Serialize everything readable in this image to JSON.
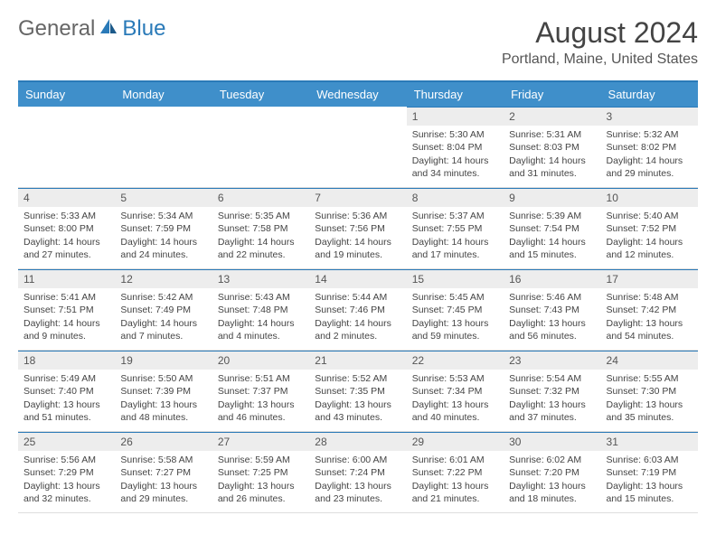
{
  "brand": {
    "part1": "General",
    "part2": "Blue"
  },
  "title": "August 2024",
  "location": "Portland, Maine, United States",
  "colors": {
    "header_bg": "#3f8fca",
    "accent": "#2a7ab8",
    "daynum_bg": "#ededed",
    "text": "#444444",
    "background": "#ffffff"
  },
  "day_headers": [
    "Sunday",
    "Monday",
    "Tuesday",
    "Wednesday",
    "Thursday",
    "Friday",
    "Saturday"
  ],
  "weeks": [
    [
      {
        "day": "",
        "sunrise": "",
        "sunset": "",
        "daylight": ""
      },
      {
        "day": "",
        "sunrise": "",
        "sunset": "",
        "daylight": ""
      },
      {
        "day": "",
        "sunrise": "",
        "sunset": "",
        "daylight": ""
      },
      {
        "day": "",
        "sunrise": "",
        "sunset": "",
        "daylight": ""
      },
      {
        "day": "1",
        "sunrise": "Sunrise: 5:30 AM",
        "sunset": "Sunset: 8:04 PM",
        "daylight": "Daylight: 14 hours and 34 minutes."
      },
      {
        "day": "2",
        "sunrise": "Sunrise: 5:31 AM",
        "sunset": "Sunset: 8:03 PM",
        "daylight": "Daylight: 14 hours and 31 minutes."
      },
      {
        "day": "3",
        "sunrise": "Sunrise: 5:32 AM",
        "sunset": "Sunset: 8:02 PM",
        "daylight": "Daylight: 14 hours and 29 minutes."
      }
    ],
    [
      {
        "day": "4",
        "sunrise": "Sunrise: 5:33 AM",
        "sunset": "Sunset: 8:00 PM",
        "daylight": "Daylight: 14 hours and 27 minutes."
      },
      {
        "day": "5",
        "sunrise": "Sunrise: 5:34 AM",
        "sunset": "Sunset: 7:59 PM",
        "daylight": "Daylight: 14 hours and 24 minutes."
      },
      {
        "day": "6",
        "sunrise": "Sunrise: 5:35 AM",
        "sunset": "Sunset: 7:58 PM",
        "daylight": "Daylight: 14 hours and 22 minutes."
      },
      {
        "day": "7",
        "sunrise": "Sunrise: 5:36 AM",
        "sunset": "Sunset: 7:56 PM",
        "daylight": "Daylight: 14 hours and 19 minutes."
      },
      {
        "day": "8",
        "sunrise": "Sunrise: 5:37 AM",
        "sunset": "Sunset: 7:55 PM",
        "daylight": "Daylight: 14 hours and 17 minutes."
      },
      {
        "day": "9",
        "sunrise": "Sunrise: 5:39 AM",
        "sunset": "Sunset: 7:54 PM",
        "daylight": "Daylight: 14 hours and 15 minutes."
      },
      {
        "day": "10",
        "sunrise": "Sunrise: 5:40 AM",
        "sunset": "Sunset: 7:52 PM",
        "daylight": "Daylight: 14 hours and 12 minutes."
      }
    ],
    [
      {
        "day": "11",
        "sunrise": "Sunrise: 5:41 AM",
        "sunset": "Sunset: 7:51 PM",
        "daylight": "Daylight: 14 hours and 9 minutes."
      },
      {
        "day": "12",
        "sunrise": "Sunrise: 5:42 AM",
        "sunset": "Sunset: 7:49 PM",
        "daylight": "Daylight: 14 hours and 7 minutes."
      },
      {
        "day": "13",
        "sunrise": "Sunrise: 5:43 AM",
        "sunset": "Sunset: 7:48 PM",
        "daylight": "Daylight: 14 hours and 4 minutes."
      },
      {
        "day": "14",
        "sunrise": "Sunrise: 5:44 AM",
        "sunset": "Sunset: 7:46 PM",
        "daylight": "Daylight: 14 hours and 2 minutes."
      },
      {
        "day": "15",
        "sunrise": "Sunrise: 5:45 AM",
        "sunset": "Sunset: 7:45 PM",
        "daylight": "Daylight: 13 hours and 59 minutes."
      },
      {
        "day": "16",
        "sunrise": "Sunrise: 5:46 AM",
        "sunset": "Sunset: 7:43 PM",
        "daylight": "Daylight: 13 hours and 56 minutes."
      },
      {
        "day": "17",
        "sunrise": "Sunrise: 5:48 AM",
        "sunset": "Sunset: 7:42 PM",
        "daylight": "Daylight: 13 hours and 54 minutes."
      }
    ],
    [
      {
        "day": "18",
        "sunrise": "Sunrise: 5:49 AM",
        "sunset": "Sunset: 7:40 PM",
        "daylight": "Daylight: 13 hours and 51 minutes."
      },
      {
        "day": "19",
        "sunrise": "Sunrise: 5:50 AM",
        "sunset": "Sunset: 7:39 PM",
        "daylight": "Daylight: 13 hours and 48 minutes."
      },
      {
        "day": "20",
        "sunrise": "Sunrise: 5:51 AM",
        "sunset": "Sunset: 7:37 PM",
        "daylight": "Daylight: 13 hours and 46 minutes."
      },
      {
        "day": "21",
        "sunrise": "Sunrise: 5:52 AM",
        "sunset": "Sunset: 7:35 PM",
        "daylight": "Daylight: 13 hours and 43 minutes."
      },
      {
        "day": "22",
        "sunrise": "Sunrise: 5:53 AM",
        "sunset": "Sunset: 7:34 PM",
        "daylight": "Daylight: 13 hours and 40 minutes."
      },
      {
        "day": "23",
        "sunrise": "Sunrise: 5:54 AM",
        "sunset": "Sunset: 7:32 PM",
        "daylight": "Daylight: 13 hours and 37 minutes."
      },
      {
        "day": "24",
        "sunrise": "Sunrise: 5:55 AM",
        "sunset": "Sunset: 7:30 PM",
        "daylight": "Daylight: 13 hours and 35 minutes."
      }
    ],
    [
      {
        "day": "25",
        "sunrise": "Sunrise: 5:56 AM",
        "sunset": "Sunset: 7:29 PM",
        "daylight": "Daylight: 13 hours and 32 minutes."
      },
      {
        "day": "26",
        "sunrise": "Sunrise: 5:58 AM",
        "sunset": "Sunset: 7:27 PM",
        "daylight": "Daylight: 13 hours and 29 minutes."
      },
      {
        "day": "27",
        "sunrise": "Sunrise: 5:59 AM",
        "sunset": "Sunset: 7:25 PM",
        "daylight": "Daylight: 13 hours and 26 minutes."
      },
      {
        "day": "28",
        "sunrise": "Sunrise: 6:00 AM",
        "sunset": "Sunset: 7:24 PM",
        "daylight": "Daylight: 13 hours and 23 minutes."
      },
      {
        "day": "29",
        "sunrise": "Sunrise: 6:01 AM",
        "sunset": "Sunset: 7:22 PM",
        "daylight": "Daylight: 13 hours and 21 minutes."
      },
      {
        "day": "30",
        "sunrise": "Sunrise: 6:02 AM",
        "sunset": "Sunset: 7:20 PM",
        "daylight": "Daylight: 13 hours and 18 minutes."
      },
      {
        "day": "31",
        "sunrise": "Sunrise: 6:03 AM",
        "sunset": "Sunset: 7:19 PM",
        "daylight": "Daylight: 13 hours and 15 minutes."
      }
    ]
  ]
}
